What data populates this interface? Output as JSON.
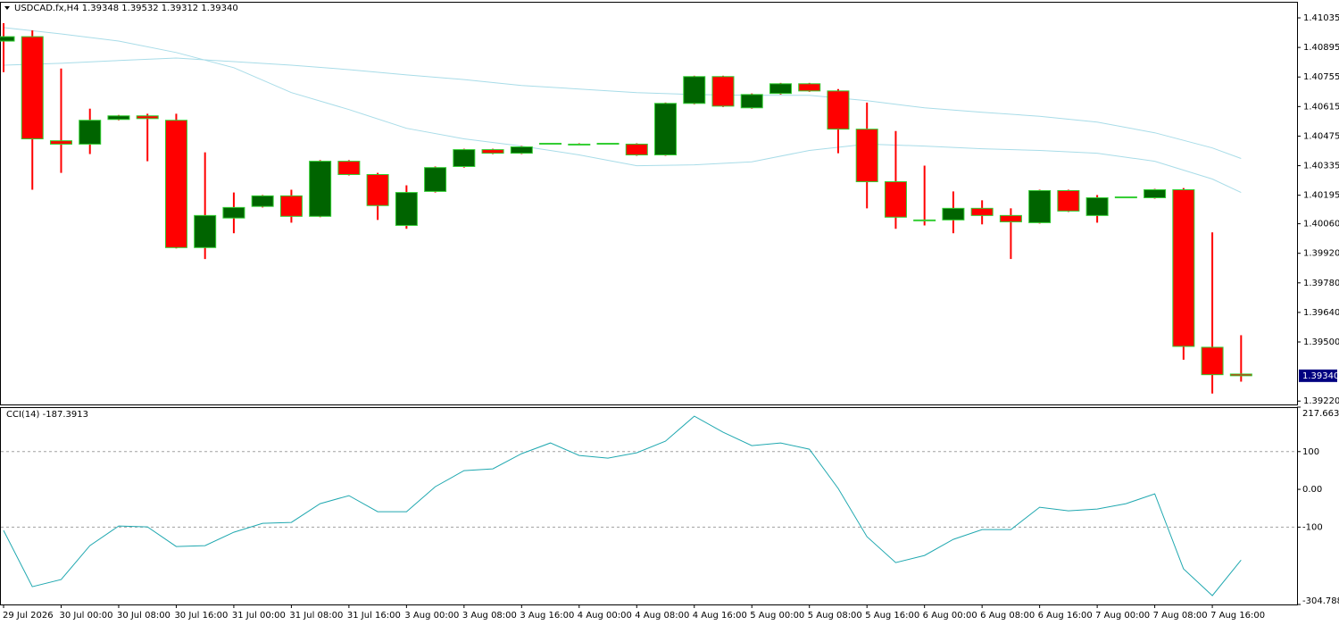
{
  "chart_data": [
    {
      "type": "candlestick",
      "title": "USDCAD.fx,H4  1.39348 1.39532 1.39312 1.39340",
      "categories": [
        "29 Jul 2026",
        null,
        "30 Jul 00:00",
        null,
        "30 Jul 08:00",
        null,
        "30 Jul 16:00",
        null,
        "31 Jul 00:00",
        null,
        "31 Jul 08:00",
        null,
        "31 Jul 16:00",
        null,
        "3 Aug 00:00",
        null,
        "3 Aug 08:00",
        null,
        "3 Aug 16:00",
        null,
        "4 Aug 00:00",
        null,
        "4 Aug 08:00",
        null,
        "4 Aug 16:00",
        null,
        "5 Aug 00:00",
        null,
        "5 Aug 08:00",
        null,
        "5 Aug 16:00",
        null,
        "6 Aug 00:00",
        null,
        "6 Aug 08:00",
        null,
        "6 Aug 16:00",
        null,
        "7 Aug 00:00",
        null,
        "7 Aug 08:00",
        null,
        "7 Aug 16:00",
        null
      ],
      "open": [
        1.40925,
        1.40946,
        1.40453,
        1.40437,
        1.40554,
        1.40571,
        1.4055,
        1.39947,
        1.40087,
        1.40142,
        1.40192,
        1.40095,
        1.40356,
        1.40293,
        1.40052,
        1.40213,
        1.40331,
        1.40411,
        1.40394,
        1.40437,
        1.40437,
        1.40437,
        1.40437,
        1.40386,
        1.4063,
        1.40757,
        1.40609,
        1.40677,
        1.40723,
        1.40689,
        1.40508,
        1.40259,
        1.40078,
        1.40078,
        1.40133,
        1.40099,
        1.40065,
        1.40217,
        1.40099,
        1.40183,
        1.40183,
        1.40221,
        1.39475,
        1.39348
      ],
      "high": [
        1.4101,
        1.40976,
        1.40795,
        1.40605,
        1.40575,
        1.40581,
        1.40581,
        1.40398,
        1.40208,
        1.40196,
        1.40221,
        1.40361,
        1.40361,
        1.40301,
        1.40242,
        1.40331,
        1.40415,
        1.40415,
        1.40428,
        1.40441,
        1.40441,
        1.40441,
        1.40441,
        1.40634,
        1.40761,
        1.40761,
        1.40677,
        1.40727,
        1.40727,
        1.40698,
        1.40634,
        1.40499,
        1.40335,
        1.40213,
        1.40171,
        1.40133,
        1.40221,
        1.40221,
        1.40196,
        1.40187,
        1.40225,
        1.40229,
        1.40019,
        1.39532
      ],
      "low": [
        1.40778,
        1.40221,
        1.40301,
        1.4039,
        1.4055,
        1.40356,
        1.39943,
        1.39893,
        1.40015,
        1.40137,
        1.40065,
        1.40091,
        1.40289,
        1.40078,
        1.40036,
        1.40208,
        1.40326,
        1.4039,
        1.4039,
        1.40437,
        1.40437,
        1.40437,
        1.40382,
        1.40382,
        1.40626,
        1.40613,
        1.40605,
        1.40672,
        1.40685,
        1.40394,
        1.40133,
        1.40036,
        1.40052,
        1.40015,
        1.40057,
        1.39893,
        1.40061,
        1.40116,
        1.40065,
        1.40183,
        1.40179,
        1.39416,
        1.39256,
        1.39312
      ],
      "close": [
        1.40946,
        1.40462,
        1.40437,
        1.4055,
        1.40571,
        1.40558,
        1.39947,
        1.40099,
        1.40137,
        1.40192,
        1.40095,
        1.40356,
        1.40293,
        1.40146,
        1.40208,
        1.40326,
        1.40411,
        1.40394,
        1.40424,
        1.40441,
        1.40437,
        1.40441,
        1.40386,
        1.4063,
        1.40757,
        1.40617,
        1.40672,
        1.40723,
        1.40689,
        1.40508,
        1.40259,
        1.40091,
        1.40074,
        1.40133,
        1.40099,
        1.40069,
        1.40217,
        1.4012,
        1.40183,
        1.40187,
        1.40221,
        1.39479,
        1.39345,
        1.3934
      ],
      "up_color": "#006400",
      "down_color": "#ff0000",
      "outline_color": "#32cd32",
      "wick_color": "#ff0000",
      "ylim": [
        1.39204,
        1.41107
      ],
      "yticks": [
        1.41035,
        1.40895,
        1.40755,
        1.40615,
        1.40475,
        1.40335,
        1.40195,
        {
          "value": 1.4006,
          "label": "1.40060"
        },
        {
          "value": 1.3992,
          "label": "1.39920"
        },
        {
          "value": 1.3978,
          "label": "1.39780"
        },
        {
          "value": 1.3964,
          "label": "1.39640"
        },
        {
          "value": 1.395,
          "label": "1.39500"
        },
        {
          "value": 1.3922,
          "label": "1.39220"
        }
      ],
      "price_label": "1.39340",
      "overlays": [
        {
          "type": "line",
          "color": "#a8dce8",
          "x": [
            0,
            2,
            4,
            6,
            8,
            10,
            12,
            14,
            16,
            18,
            20,
            22,
            24,
            26,
            28,
            30,
            32,
            34,
            36,
            38,
            40,
            42,
            43
          ],
          "values": [
            1.40989,
            1.40959,
            1.40925,
            1.40871,
            1.40799,
            1.40681,
            1.40601,
            1.40512,
            1.40462,
            1.40428,
            1.40386,
            1.40335,
            1.40339,
            1.40353,
            1.40407,
            1.40437,
            1.40428,
            1.40415,
            1.40407,
            1.40394,
            1.40356,
            1.40272,
            1.40208
          ]
        },
        {
          "type": "line",
          "color": "#a8dce8",
          "x": [
            0,
            2,
            4,
            6,
            8,
            10,
            12,
            14,
            16,
            18,
            20,
            22,
            24,
            26,
            28,
            30,
            32,
            34,
            36,
            38,
            40,
            42,
            43
          ],
          "values": [
            1.40811,
            1.4082,
            1.40833,
            1.40845,
            1.40828,
            1.40811,
            1.4079,
            1.40765,
            1.40743,
            1.40715,
            1.40698,
            1.40681,
            1.40672,
            1.40668,
            1.40668,
            1.40643,
            1.40609,
            1.40588,
            1.40569,
            1.40541,
            1.40491,
            1.40419,
            1.40369
          ]
        }
      ]
    },
    {
      "type": "line",
      "title": "CCI(14) -187.3913",
      "color": "#20a8b0",
      "values": [
        -108.7,
        -257.7,
        -238.8,
        -148.9,
        -96.9,
        -99.3,
        -151.3,
        -148.9,
        -113.5,
        -89.8,
        -87.5,
        -37.8,
        -16.5,
        -59.1,
        -59.1,
        7.1,
        49.6,
        54.4,
        94.6,
        122.9,
        89.8,
        82.7,
        96.9,
        127.7,
        193.8,
        151.3,
        115.8,
        122.9,
        106.4,
        2.4,
        -125.3,
        -193.8,
        -174.9,
        -132.4,
        -106.4,
        -106.4,
        -47.3,
        -56.7,
        -52.0,
        -37.8,
        -11.8,
        -210.4,
        -281.3,
        -187.3913
      ],
      "ylim": [
        -304.7883,
        217.6635
      ],
      "yticks": [
        217.6635,
        100,
        {
          "value": 0,
          "label": "0.00"
        },
        -100,
        -304.7883
      ],
      "levels": [
        100,
        -100
      ]
    }
  ]
}
